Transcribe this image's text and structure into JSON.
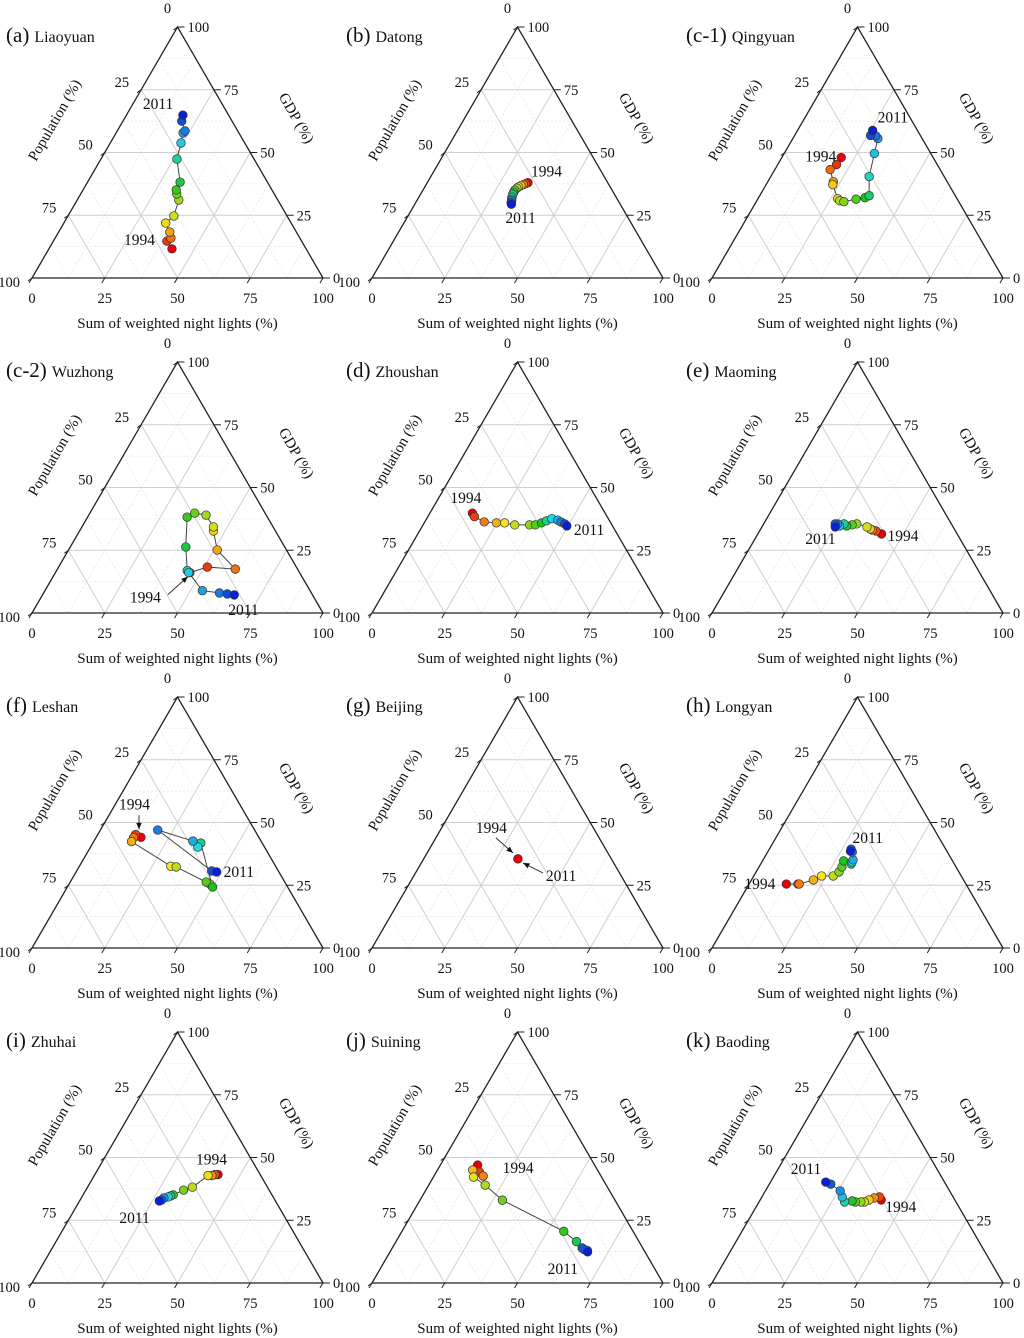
{
  "chart_data": {
    "type": "scatter",
    "subtype": "ternary-trajectory",
    "axes": {
      "bottom": "Sum of weighted night lights (%)",
      "left": "Population (%)",
      "right": "GDP (%)",
      "ticks": [
        0,
        25,
        50,
        75,
        100
      ],
      "range": [
        0,
        100
      ]
    },
    "color_scale": {
      "from_year": 1994,
      "to_year": 2011,
      "colors": [
        "#e8000b",
        "#f07a10",
        "#f6e51a",
        "#8ad41e",
        "#17c51b",
        "#1fd7e6",
        "#1b7fe6",
        "#0a1fd8"
      ]
    },
    "point_format": "[night_lights_pct, gdp_pct]; population_pct = 100 - night_lights - gdp; ordered 1994 -> 2011",
    "panels": [
      {
        "id": "a",
        "tag": "(a)",
        "city": "Liaoyuan",
        "labels": [
          {
            "text": "1994",
            "at": "start"
          },
          {
            "text": "2011",
            "at": "end"
          }
        ],
        "points": [
          [
            42.3,
            11.6
          ],
          [
            39.0,
            14.7
          ],
          [
            39.8,
            15.9
          ],
          [
            38.2,
            18.3
          ],
          [
            35.0,
            21.9
          ],
          [
            36.4,
            24.7
          ],
          [
            34.9,
            31.1
          ],
          [
            33.0,
            33.5
          ],
          [
            32.0,
            35.1
          ],
          [
            31.8,
            38.2
          ],
          [
            26.1,
            47.4
          ],
          [
            24.3,
            53.8
          ],
          [
            23.0,
            57.8
          ],
          [
            23.3,
            58.6
          ],
          [
            20.2,
            62.5
          ],
          [
            19.4,
            64.9
          ]
        ]
      },
      {
        "id": "b",
        "tag": "(b)",
        "city": "Datong",
        "labels": [
          {
            "text": "1994",
            "at": "start"
          },
          {
            "text": "2011",
            "at": "end"
          }
        ],
        "points": [
          [
            34.6,
            38.0
          ],
          [
            34.0,
            37.6
          ],
          [
            33.4,
            37.2
          ],
          [
            32.8,
            36.8
          ],
          [
            32.2,
            36.3
          ],
          [
            31.9,
            35.8
          ],
          [
            31.6,
            35.0
          ],
          [
            31.6,
            34.2
          ],
          [
            31.7,
            33.4
          ],
          [
            32.0,
            32.2
          ],
          [
            32.3,
            31.4
          ],
          [
            32.6,
            30.8
          ],
          [
            32.8,
            30.0
          ],
          [
            33.2,
            29.4
          ]
        ]
      },
      {
        "id": "c1",
        "tag": "(c-1)",
        "city": "Qingyuan",
        "labels": [
          {
            "text": "1994",
            "at": "start"
          },
          {
            "text": "2011",
            "at": "end"
          }
        ],
        "points": [
          [
            20.4,
            48.0
          ],
          [
            20.2,
            45.2
          ],
          [
            19.0,
            43.2
          ],
          [
            22.5,
            38.4
          ],
          [
            22.9,
            37.2
          ],
          [
            27.4,
            31.6
          ],
          [
            28.5,
            30.8
          ],
          [
            30.1,
            30.4
          ],
          [
            33.8,
            31.4
          ],
          [
            36.6,
            32.0
          ],
          [
            37.6,
            32.8
          ],
          [
            33.8,
            40.4
          ],
          [
            31.0,
            49.6
          ],
          [
            29.2,
            55.6
          ],
          [
            28.0,
            56.6
          ],
          [
            26.1,
            56.8
          ],
          [
            25.8,
            58.8
          ]
        ]
      },
      {
        "id": "c2",
        "tag": "(c-2)",
        "city": "Wuzhong",
        "labels": [
          {
            "text": "1994",
            "at": "start",
            "arrow": true
          },
          {
            "text": "2011",
            "at": "end"
          }
        ],
        "points": [
          [
            46.2,
            16.1
          ],
          [
            51.1,
            18.3
          ],
          [
            61.1,
            17.5
          ],
          [
            51.1,
            25.1
          ],
          [
            46.0,
            32.7
          ],
          [
            45.2,
            34.3
          ],
          [
            40.3,
            39.0
          ],
          [
            36.0,
            39.8
          ],
          [
            34.2,
            38.2
          ],
          [
            39.7,
            26.3
          ],
          [
            44.9,
            16.9
          ],
          [
            45.8,
            16.1
          ],
          [
            54.1,
            8.9
          ],
          [
            60.4,
            8.0
          ],
          [
            63.3,
            7.6
          ],
          [
            65.9,
            7.2
          ]
        ]
      },
      {
        "id": "d",
        "tag": "(d)",
        "city": "Zhoushan",
        "labels": [
          {
            "text": "1994",
            "at": "start"
          },
          {
            "text": "2011",
            "at": "end"
          }
        ],
        "points": [
          [
            14.6,
            39.8
          ],
          [
            16.0,
            38.4
          ],
          [
            20.4,
            36.3
          ],
          [
            24.8,
            35.9
          ],
          [
            27.6,
            35.9
          ],
          [
            31.5,
            35.1
          ],
          [
            36.6,
            35.1
          ],
          [
            38.6,
            35.1
          ],
          [
            40.3,
            35.9
          ],
          [
            41.6,
            36.7
          ],
          [
            43.0,
            37.6
          ],
          [
            45.3,
            37.0
          ],
          [
            46.9,
            36.2
          ],
          [
            48.5,
            35.5
          ],
          [
            49.6,
            34.7
          ]
        ]
      },
      {
        "id": "e",
        "tag": "(e)",
        "city": "Maoming",
        "labels": [
          {
            "text": "1994",
            "at": "end_high"
          },
          {
            "text": "2011",
            "at": "start_low"
          }
        ],
        "points": [
          [
            42.5,
            31.5
          ],
          [
            40.0,
            32.7
          ],
          [
            38.5,
            33.1
          ],
          [
            37.6,
            33.5
          ],
          [
            36.1,
            34.3
          ],
          [
            32.0,
            35.5
          ],
          [
            30.6,
            35.1
          ],
          [
            28.9,
            34.7
          ],
          [
            27.6,
            35.5
          ],
          [
            26.5,
            34.7
          ],
          [
            25.4,
            35.5
          ],
          [
            24.6,
            35.5
          ],
          [
            25.2,
            34.3
          ]
        ],
        "order_note": "listed 1994 first: right-hand red points are 1994, left-hand blue cluster is 2011"
      },
      {
        "id": "f",
        "tag": "(f)",
        "city": "Leshan",
        "labels": [
          {
            "text": "1994",
            "at": "start",
            "arrow": true
          },
          {
            "text": "2011",
            "at": "end"
          }
        ],
        "points": [
          [
            15.4,
            44.1
          ],
          [
            13.0,
            45.2
          ],
          [
            12.9,
            44.0
          ],
          [
            13.0,
            42.4
          ],
          [
            31.4,
            32.6
          ],
          [
            33.4,
            32.3
          ],
          [
            48.4,
            25.5
          ],
          [
            46.7,
            26.3
          ],
          [
            49.9,
            24.3
          ],
          [
            37.1,
            41.8
          ],
          [
            36.9,
            40.2
          ],
          [
            34.0,
            42.6
          ],
          [
            19.7,
            47.0
          ],
          [
            46.4,
            30.7
          ],
          [
            48.3,
            30.3
          ]
        ]
      },
      {
        "id": "g",
        "tag": "(g)",
        "city": "Beijing",
        "labels": [
          {
            "text": "1994",
            "at": "start",
            "arrow": true
          },
          {
            "text": "2011",
            "at": "end",
            "arrow": true
          }
        ],
        "points": [
          [
            32.4,
            35.5
          ],
          [
            32.4,
            35.5
          ]
        ]
      },
      {
        "id": "h",
        "tag": "(h)",
        "city": "Longyan",
        "labels": [
          {
            "text": "1994",
            "at": "start"
          },
          {
            "text": "2011",
            "at": "end"
          }
        ],
        "points": [
          [
            12.8,
            25.5
          ],
          [
            16.8,
            25.5
          ],
          [
            17.2,
            25.5
          ],
          [
            21.3,
            27.1
          ],
          [
            23.3,
            28.7
          ],
          [
            27.3,
            28.7
          ],
          [
            28.5,
            30.3
          ],
          [
            28.5,
            32.3
          ],
          [
            27.9,
            34.7
          ],
          [
            31.1,
            33.5
          ],
          [
            31.0,
            34.3
          ],
          [
            30.9,
            35.1
          ],
          [
            29.1,
            38.2
          ],
          [
            28.1,
            39.4
          ],
          [
            28.3,
            38.6
          ]
        ]
      },
      {
        "id": "i",
        "tag": "(i)",
        "city": "Zhuhai",
        "labels": [
          {
            "text": "1994",
            "at": "start"
          },
          {
            "text": "2011",
            "at": "end"
          }
        ],
        "points": [
          [
            42.3,
            43.2
          ],
          [
            41.3,
            43.2
          ],
          [
            40.4,
            42.8
          ],
          [
            39.1,
            42.8
          ],
          [
            36.0,
            38.2
          ],
          [
            33.6,
            37.0
          ],
          [
            31.0,
            35.1
          ],
          [
            30.3,
            34.7
          ],
          [
            29.6,
            34.3
          ],
          [
            28.4,
            33.9
          ],
          [
            28.0,
            33.1
          ],
          [
            27.4,
            32.7
          ]
        ]
      },
      {
        "id": "j",
        "tag": "(j)",
        "city": "Suining",
        "labels": [
          {
            "text": "1994",
            "at": "start"
          },
          {
            "text": "2011",
            "at": "end"
          }
        ],
        "points": [
          [
            12.8,
            47.0
          ],
          [
            14.8,
            44.2
          ],
          [
            16.9,
            42.6
          ],
          [
            12.1,
            45.0
          ],
          [
            13.8,
            42.2
          ],
          [
            19.4,
            39.0
          ],
          [
            28.3,
            33.0
          ],
          [
            55.6,
            20.6
          ],
          [
            62.0,
            16.5
          ],
          [
            65.2,
            14.0
          ],
          [
            66.3,
            13.3
          ],
          [
            67.5,
            13.0
          ],
          [
            65.6,
            13.7
          ],
          [
            67.9,
            12.4
          ]
        ]
      },
      {
        "id": "k",
        "tag": "(k)",
        "city": "Baoding",
        "labels": [
          {
            "text": "1994",
            "at": "start"
          },
          {
            "text": "2011",
            "at": "end"
          }
        ],
        "points": [
          [
            41.6,
            33.1
          ],
          [
            40.4,
            34.3
          ],
          [
            38.8,
            33.9
          ],
          [
            37.4,
            33.1
          ],
          [
            36.2,
            32.3
          ],
          [
            35.0,
            32.3
          ],
          [
            33.1,
            32.3
          ],
          [
            31.8,
            32.7
          ],
          [
            29.4,
            32.3
          ],
          [
            27.6,
            34.3
          ],
          [
            25.7,
            36.7
          ],
          [
            21.1,
            39.4
          ],
          [
            19.0,
            40.2
          ]
        ]
      }
    ]
  }
}
